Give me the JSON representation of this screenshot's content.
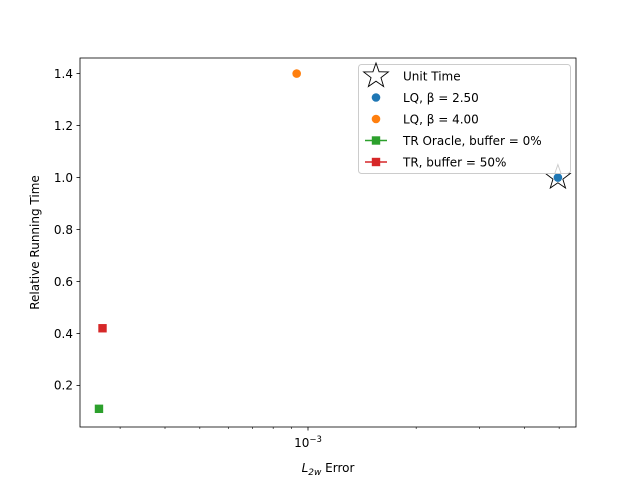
{
  "chart_data": {
    "type": "scatter",
    "xlabel_base": "L",
    "xlabel_sub": "2w",
    "xlabel_suffix": " Error",
    "ylabel": "Relative Running Time",
    "x_scale": "log",
    "x_tick_labels": [
      {
        "value": 0.001,
        "base": "10",
        "exp": "−3"
      }
    ],
    "ylim": [
      0.04,
      1.46
    ],
    "yticks": [
      0.2,
      0.4,
      0.6,
      0.8,
      1.0,
      1.2,
      1.4
    ],
    "ytick_labels": [
      "0.2",
      "0.4",
      "0.6",
      "0.8",
      "1.0",
      "1.2",
      "1.4"
    ],
    "legend_position": "top-right",
    "series": [
      {
        "name": "Unit Time",
        "marker": "star",
        "color": "#ffffff",
        "edge": "#000000",
        "x": [
          0.00496
        ],
        "y": [
          1.0
        ]
      },
      {
        "name": "LQ, β = 2.50",
        "marker": "circle",
        "color": "#1f77b4",
        "x": [
          0.00496
        ],
        "y": [
          1.0
        ]
      },
      {
        "name": "LQ, β = 4.00",
        "marker": "circle",
        "color": "#ff7f0e",
        "x": [
          0.00093
        ],
        "y": [
          1.4
        ]
      },
      {
        "name": "TR Oracle, buffer = 0%",
        "marker": "square",
        "color": "#2ca02c",
        "line": true,
        "x": [
          0.000262
        ],
        "y": [
          0.11
        ]
      },
      {
        "name": "TR, buffer = 50%",
        "marker": "square",
        "color": "#d62728",
        "line": true,
        "x": [
          0.000268
        ],
        "y": [
          0.42
        ]
      }
    ]
  }
}
